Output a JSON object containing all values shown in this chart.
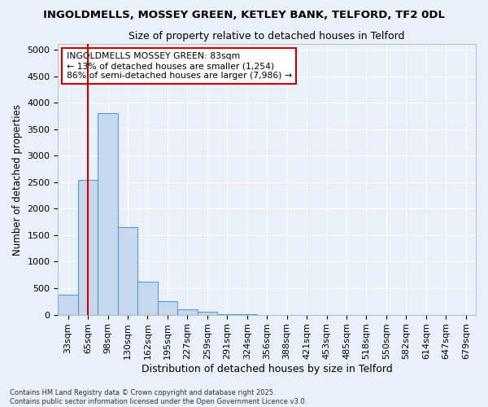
{
  "title": "INGOLDMELLS, MOSSEY GREEN, KETLEY BANK, TELFORD, TF2 0DL",
  "subtitle": "Size of property relative to detached houses in Telford",
  "xlabel": "Distribution of detached houses by size in Telford",
  "ylabel": "Number of detached properties",
  "categories": [
    "33sqm",
    "65sqm",
    "98sqm",
    "130sqm",
    "162sqm",
    "195sqm",
    "227sqm",
    "259sqm",
    "291sqm",
    "324sqm",
    "356sqm",
    "388sqm",
    "421sqm",
    "453sqm",
    "485sqm",
    "518sqm",
    "550sqm",
    "582sqm",
    "614sqm",
    "647sqm",
    "679sqm"
  ],
  "values": [
    380,
    2550,
    3800,
    1650,
    625,
    250,
    100,
    50,
    5,
    5,
    0,
    0,
    0,
    0,
    0,
    0,
    0,
    0,
    0,
    0,
    0
  ],
  "bar_color": "#c5d8ee",
  "bar_edge_color": "#5b9bd5",
  "background_color": "#eaf0f8",
  "grid_color": "#ffffff",
  "vline_x_index": 1,
  "vline_color": "#cc0000",
  "annotation_text": "INGOLDMELLS MOSSEY GREEN: 83sqm\n← 13% of detached houses are smaller (1,254)\n86% of semi-detached houses are larger (7,986) →",
  "annotation_box_facecolor": "#ffffff",
  "annotation_box_edgecolor": "#cc0000",
  "ylim": [
    0,
    5100
  ],
  "yticks": [
    0,
    500,
    1000,
    1500,
    2000,
    2500,
    3000,
    3500,
    4000,
    4500,
    5000
  ],
  "title_fontsize": 9.5,
  "subtitle_fontsize": 9,
  "tick_fontsize": 8,
  "ylabel_fontsize": 8.5,
  "xlabel_fontsize": 9,
  "footer": "Contains HM Land Registry data © Crown copyright and database right 2025.\nContains public sector information licensed under the Open Government Licence v3.0."
}
